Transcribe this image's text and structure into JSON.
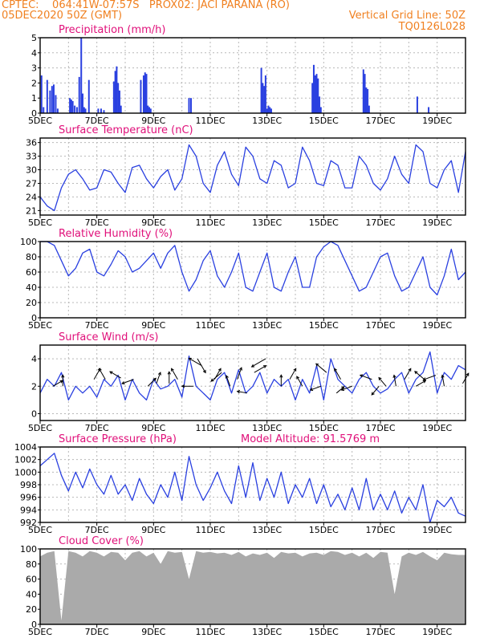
{
  "header": {
    "line1_left": "CPTEC:    064:41W-07:57S   PROX02: JACI PARANA (RO)",
    "line2_left": "05DEC2020 50Z (GMT)",
    "line2_right": "Vertical Grid Line: 50Z",
    "line3_right": "TQ0126L028"
  },
  "colors": {
    "header": "#f08020",
    "panel_title": "#e0107a",
    "series": "#2a40e0",
    "cloud": "#aaaaaa",
    "wind_vector": "#000000"
  },
  "chart_data": [
    {
      "type": "bar",
      "title": "Precipitation (mm/h)",
      "ylim": [
        0,
        5
      ],
      "yticks": [
        0,
        1,
        2,
        3,
        4,
        5
      ],
      "xticks": [
        "5DEC",
        "7DEC",
        "9DEC",
        "11DEC",
        "13DEC",
        "15DEC",
        "17DEC",
        "19DEC"
      ],
      "xlim_days": [
        5,
        20
      ],
      "grid": "dashed",
      "x_day": [
        5.05,
        5.12,
        5.25,
        5.35,
        5.42,
        5.48,
        5.55,
        5.62,
        6.05,
        6.1,
        6.15,
        6.22,
        6.3,
        6.38,
        6.45,
        6.5,
        6.55,
        6.6,
        6.72,
        7.05,
        7.15,
        7.25,
        7.6,
        7.65,
        7.7,
        7.75,
        7.8,
        7.85,
        8.55,
        8.65,
        8.7,
        8.75,
        8.8,
        8.85,
        8.9,
        10.25,
        10.32,
        12.8,
        12.85,
        12.9,
        12.95,
        13.0,
        13.05,
        13.1,
        13.15,
        14.6,
        14.65,
        14.7,
        14.75,
        14.8,
        14.85,
        14.9,
        16.4,
        16.45,
        16.5,
        16.55,
        16.6,
        18.3,
        18.7
      ],
      "values": [
        2.5,
        0.4,
        2.2,
        1.5,
        1.8,
        1.9,
        1.2,
        0.3,
        1.0,
        0.9,
        0.8,
        0.5,
        0.4,
        2.4,
        5.0,
        1.3,
        0.4,
        0.3,
        2.2,
        0.3,
        0.3,
        0.2,
        2.1,
        2.8,
        3.1,
        2.0,
        1.5,
        0.5,
        2.2,
        2.5,
        2.7,
        2.6,
        0.5,
        0.4,
        0.3,
        1.0,
        1.0,
        3.0,
        2.0,
        1.8,
        2.5,
        0.3,
        0.5,
        0.4,
        0.3,
        2.0,
        3.2,
        2.5,
        2.6,
        2.3,
        1.1,
        0.4,
        2.9,
        2.6,
        1.7,
        1.6,
        0.5,
        1.1,
        0.4
      ]
    },
    {
      "type": "line",
      "title": "Surface Temperature (nC)",
      "ylim": [
        20,
        37
      ],
      "yticks": [
        21,
        24,
        27,
        30,
        33,
        36
      ],
      "xticks": [
        "5DEC",
        "7DEC",
        "9DEC",
        "11DEC",
        "13DEC",
        "15DEC",
        "17DEC",
        "19DEC"
      ],
      "xlim_days": [
        5,
        20
      ],
      "x_day": [
        5,
        5.25,
        5.5,
        5.75,
        6,
        6.25,
        6.5,
        6.75,
        7,
        7.25,
        7.5,
        7.75,
        8,
        8.25,
        8.5,
        8.75,
        9,
        9.25,
        9.5,
        9.75,
        10,
        10.25,
        10.5,
        10.75,
        11,
        11.25,
        11.5,
        11.75,
        12,
        12.25,
        12.5,
        12.75,
        13,
        13.25,
        13.5,
        13.75,
        14,
        14.25,
        14.5,
        14.75,
        15,
        15.25,
        15.5,
        15.75,
        16,
        16.25,
        16.5,
        16.75,
        17,
        17.25,
        17.5,
        17.75,
        18,
        18.25,
        18.5,
        18.75,
        19,
        19.25,
        19.5,
        19.75,
        20
      ],
      "values": [
        24,
        22,
        21,
        26,
        29,
        30,
        28,
        25.5,
        26,
        30,
        29.5,
        27,
        25,
        30.5,
        31,
        28,
        26,
        28.5,
        30,
        25.5,
        28,
        35.5,
        33,
        27,
        25,
        31,
        34,
        29,
        26.5,
        35,
        33,
        28,
        27,
        32,
        31,
        26,
        27,
        35,
        32,
        27,
        26.5,
        32,
        31,
        26,
        26,
        33,
        31,
        27,
        25.5,
        28,
        33,
        29,
        27,
        35.5,
        34,
        27,
        26,
        30,
        32,
        25,
        34
      ]
    },
    {
      "type": "line",
      "title": "Relative Humidity (%)",
      "ylim": [
        0,
        100
      ],
      "yticks": [
        0,
        20,
        40,
        60,
        80,
        100
      ],
      "xticks": [
        "5DEC",
        "7DEC",
        "9DEC",
        "11DEC",
        "13DEC",
        "15DEC",
        "17DEC",
        "19DEC"
      ],
      "xlim_days": [
        5,
        20
      ],
      "x_day": [
        5,
        5.25,
        5.5,
        5.75,
        6,
        6.25,
        6.5,
        6.75,
        7,
        7.25,
        7.5,
        7.75,
        8,
        8.25,
        8.5,
        8.75,
        9,
        9.25,
        9.5,
        9.75,
        10,
        10.25,
        10.5,
        10.75,
        11,
        11.25,
        11.5,
        11.75,
        12,
        12.25,
        12.5,
        12.75,
        13,
        13.25,
        13.5,
        13.75,
        14,
        14.25,
        14.5,
        14.75,
        15,
        15.25,
        15.5,
        15.75,
        16,
        16.25,
        16.5,
        16.75,
        17,
        17.25,
        17.5,
        17.75,
        18,
        18.25,
        18.5,
        18.75,
        19,
        19.25,
        19.5,
        19.75,
        20
      ],
      "values": [
        100,
        100,
        95,
        75,
        55,
        65,
        85,
        90,
        60,
        55,
        70,
        88,
        80,
        60,
        65,
        75,
        85,
        65,
        85,
        95,
        60,
        35,
        50,
        75,
        88,
        55,
        40,
        60,
        85,
        40,
        35,
        60,
        85,
        40,
        35,
        60,
        80,
        40,
        40,
        80,
        93,
        100,
        95,
        75,
        55,
        35,
        40,
        60,
        80,
        85,
        55,
        35,
        40,
        60,
        80,
        40,
        30,
        55,
        90,
        50,
        60
      ]
    },
    {
      "type": "line",
      "title": "Surface Wind (m/s)",
      "ylim": [
        -0.5,
        5
      ],
      "yticks": [
        0,
        2,
        4
      ],
      "xticks": [
        "5DEC",
        "7DEC",
        "9DEC",
        "11DEC",
        "13DEC",
        "15DEC",
        "17DEC",
        "19DEC"
      ],
      "xlim_days": [
        5,
        20
      ],
      "x_day": [
        5,
        5.25,
        5.5,
        5.75,
        6,
        6.25,
        6.5,
        6.75,
        7,
        7.25,
        7.5,
        7.75,
        8,
        8.25,
        8.5,
        8.75,
        9,
        9.25,
        9.5,
        9.75,
        10,
        10.25,
        10.5,
        10.75,
        11,
        11.25,
        11.5,
        11.75,
        12,
        12.25,
        12.5,
        12.75,
        13,
        13.25,
        13.5,
        13.75,
        14,
        14.25,
        14.5,
        14.75,
        15,
        15.25,
        15.5,
        15.75,
        16,
        16.25,
        16.5,
        16.75,
        17,
        17.25,
        17.5,
        17.75,
        18,
        18.25,
        18.5,
        18.75,
        19,
        19.25,
        19.5,
        19.75,
        20
      ],
      "values": [
        1.5,
        2.5,
        2.0,
        3.0,
        1.0,
        2.0,
        1.5,
        2.0,
        1.2,
        2.5,
        2.0,
        2.8,
        1.0,
        2.5,
        1.5,
        1.0,
        2.5,
        1.8,
        2.0,
        2.5,
        1.2,
        4.2,
        2.0,
        1.5,
        1.0,
        2.5,
        3.0,
        1.5,
        3.2,
        1.5,
        2.0,
        3.0,
        1.5,
        2.5,
        2.0,
        2.5,
        1.0,
        2.5,
        1.5,
        3.5,
        1.0,
        4.0,
        2.5,
        2.0,
        1.5,
        2.5,
        3.0,
        2.0,
        1.5,
        1.8,
        2.5,
        3.0,
        1.5,
        2.5,
        3.0,
        4.5,
        1.5,
        3.0,
        2.5,
        3.5,
        3.2
      ],
      "vectors_x_day": [
        5.45,
        5.8,
        6.9,
        7.3,
        7.85,
        8.3,
        8.8,
        9.1,
        9.55,
        9.85,
        10.4,
        10.55,
        10.7,
        11.15,
        11.4,
        11.7,
        11.95,
        12.3,
        12.55,
        12.95,
        13.5,
        13.8,
        14.25,
        14.9,
        15.1,
        15.45,
        15.6,
        16.0,
        16.7,
        16.95,
        17.2,
        17.55,
        17.85,
        18.25,
        18.55,
        18.95,
        19.25,
        19.9
      ],
      "vectors_speed": [
        2.0,
        2.0,
        2.5,
        2.5,
        2.6,
        2.5,
        2.0,
        2.2,
        2.2,
        2.5,
        2.0,
        4.0,
        3.5,
        2.5,
        3.0,
        2.0,
        2.5,
        1.5,
        3.0,
        4.0,
        2.0,
        2.5,
        2.0,
        2.0,
        3.0,
        1.5,
        2.5,
        2.0,
        2.5,
        2.0,
        2.0,
        2.0,
        2.5,
        2.0,
        2.5,
        2.8,
        2.0,
        2.2
      ],
      "vectors_dir_deg": [
        30,
        90,
        60,
        120,
        150,
        200,
        45,
        70,
        90,
        120,
        180,
        300,
        150,
        60,
        220,
        110,
        70,
        170,
        30,
        210,
        90,
        60,
        120,
        200,
        140,
        40,
        120,
        200,
        160,
        230,
        130,
        100,
        60,
        30,
        140,
        200,
        100,
        60
      ]
    },
    {
      "type": "line",
      "title": "Surface Pressure (hPa)",
      "annotation": "Model Altitude: 91.5769 m",
      "ylim": [
        992,
        1004
      ],
      "yticks": [
        992,
        994,
        996,
        998,
        1000,
        1002,
        1004
      ],
      "xticks": [
        "5DEC",
        "7DEC",
        "9DEC",
        "11DEC",
        "13DEC",
        "15DEC",
        "17DEC",
        "19DEC"
      ],
      "xlim_days": [
        5,
        20
      ],
      "x_day": [
        5,
        5.25,
        5.5,
        5.75,
        6,
        6.25,
        6.5,
        6.75,
        7,
        7.25,
        7.5,
        7.75,
        8,
        8.25,
        8.5,
        8.75,
        9,
        9.25,
        9.5,
        9.75,
        10,
        10.25,
        10.5,
        10.75,
        11,
        11.25,
        11.5,
        11.75,
        12,
        12.25,
        12.5,
        12.75,
        13,
        13.25,
        13.5,
        13.75,
        14,
        14.25,
        14.5,
        14.75,
        15,
        15.25,
        15.5,
        15.75,
        16,
        16.25,
        16.5,
        16.75,
        17,
        17.25,
        17.5,
        17.75,
        18,
        18.25,
        18.5,
        18.75,
        19,
        19.25,
        19.5,
        19.75,
        20
      ],
      "values": [
        1001,
        1002,
        1003,
        999.5,
        997,
        1000,
        997.5,
        1000.5,
        998,
        996.5,
        999.5,
        996.5,
        998,
        995.5,
        999,
        996.5,
        995,
        998,
        996,
        1000,
        995.5,
        1002.5,
        998,
        995.5,
        997.5,
        1000,
        997,
        995,
        1001,
        996,
        1001.5,
        995.5,
        999,
        996,
        1000,
        995,
        998,
        996,
        999,
        995,
        998,
        994.5,
        996.5,
        994,
        997.5,
        994,
        999,
        994,
        996.5,
        994,
        997,
        993.5,
        996,
        994,
        998,
        992,
        995.5,
        994.5,
        996,
        993.5,
        993
      ]
    },
    {
      "type": "area",
      "title": "Cloud Cover (%)",
      "ylim": [
        0,
        100
      ],
      "yticks": [
        0,
        20,
        40,
        60,
        80,
        100
      ],
      "xticks": [
        "5DEC",
        "7DEC",
        "9DEC",
        "11DEC",
        "13DEC",
        "15DEC",
        "17DEC",
        "19DEC"
      ],
      "xlim_days": [
        5,
        20
      ],
      "x_day": [
        5,
        5.25,
        5.5,
        5.75,
        6,
        6.25,
        6.5,
        6.75,
        7,
        7.25,
        7.5,
        7.75,
        8,
        8.25,
        8.5,
        8.75,
        9,
        9.25,
        9.5,
        9.75,
        10,
        10.25,
        10.5,
        10.75,
        11,
        11.25,
        11.5,
        11.75,
        12,
        12.25,
        12.5,
        12.75,
        13,
        13.25,
        13.5,
        13.75,
        14,
        14.25,
        14.5,
        14.75,
        15,
        15.25,
        15.5,
        15.75,
        16,
        16.25,
        16.5,
        16.75,
        17,
        17.25,
        17.5,
        17.75,
        18,
        18.25,
        18.5,
        18.75,
        19,
        19.25,
        19.5,
        19.75,
        20
      ],
      "values": [
        90,
        95,
        97,
        5,
        97,
        95,
        90,
        97,
        95,
        90,
        96,
        95,
        85,
        95,
        97,
        90,
        95,
        80,
        97,
        95,
        96,
        60,
        97,
        95,
        96,
        94,
        95,
        92,
        96,
        90,
        94,
        92,
        95,
        88,
        96,
        94,
        95,
        90,
        94,
        95,
        92,
        97,
        96,
        92,
        95,
        90,
        95,
        88,
        96,
        95,
        40,
        90,
        95,
        92,
        96,
        90,
        85,
        95,
        93,
        92,
        92
      ]
    }
  ]
}
